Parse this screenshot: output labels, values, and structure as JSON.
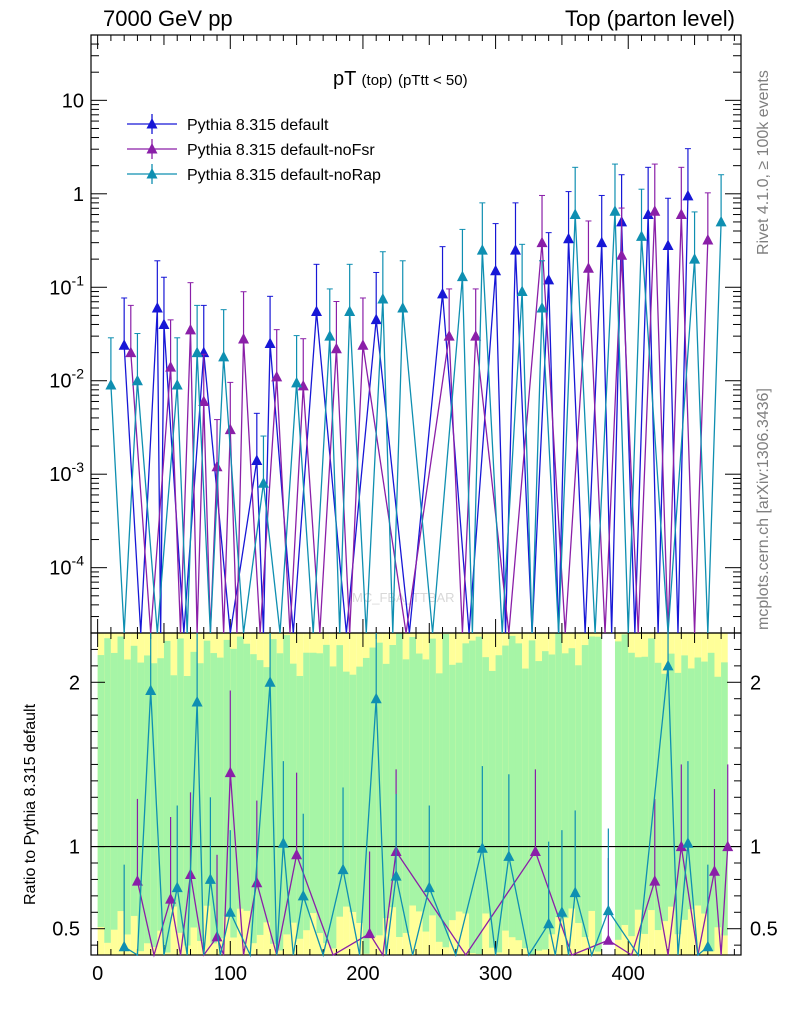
{
  "header": {
    "left": "7000 GeV pp",
    "right": "Top (parton level)"
  },
  "side_labels": {
    "rivet": "Rivet 4.1.0, ≥ 100k events",
    "mcplots": "mcplots.cern.ch [arXiv:1306.3436]"
  },
  "watermark": "MC_FBA_TTBAR",
  "chart_data": {
    "type": "line",
    "title": {
      "main": "pT",
      "sub1": "(top)",
      "sub2": "(pTtt < 50)"
    },
    "xlabel": "",
    "ylabel": "",
    "xlim": [
      -5,
      485
    ],
    "ylim": [
      2e-05,
      50
    ],
    "yscale": "log",
    "x_ticks": [
      "0",
      "100",
      "200",
      "300",
      "400"
    ],
    "y_tick_labels": [
      "10",
      "1",
      "10^-1",
      "10^-2",
      "10^-3",
      "10^-4"
    ],
    "legend_position": "top-left",
    "series": [
      {
        "name": "Pythia 8.315 default",
        "color": "#1717d6",
        "points": [
          [
            20,
            0.024
          ],
          [
            45,
            0.06
          ],
          [
            50,
            0.04
          ],
          [
            80,
            0.02
          ],
          [
            120,
            0.0014
          ],
          [
            130,
            0.025
          ],
          [
            165,
            0.055
          ],
          [
            210,
            0.045
          ],
          [
            260,
            0.085
          ],
          [
            300,
            0.15
          ],
          [
            315,
            0.25
          ],
          [
            340,
            0.12
          ],
          [
            355,
            0.33
          ],
          [
            380,
            0.3
          ],
          [
            395,
            0.5
          ],
          [
            415,
            0.6
          ],
          [
            430,
            0.28
          ],
          [
            445,
            0.95
          ]
        ]
      },
      {
        "name": "Pythia 8.315 default-noFsr",
        "color": "#8a1fa8",
        "points": [
          [
            25,
            0.02
          ],
          [
            55,
            0.014
          ],
          [
            70,
            0.035
          ],
          [
            80,
            0.006
          ],
          [
            90,
            0.0012
          ],
          [
            100,
            0.003
          ],
          [
            110,
            0.028
          ],
          [
            135,
            0.011
          ],
          [
            155,
            0.0088
          ],
          [
            180,
            0.022
          ],
          [
            200,
            0.024
          ],
          [
            265,
            0.03
          ],
          [
            285,
            0.03
          ],
          [
            335,
            0.3
          ],
          [
            370,
            0.16
          ],
          [
            395,
            0.22
          ],
          [
            420,
            0.65
          ],
          [
            440,
            0.6
          ],
          [
            460,
            0.32
          ]
        ]
      },
      {
        "name": "Pythia 8.315 default-noRap",
        "color": "#0f8fb1",
        "points": [
          [
            10,
            0.009
          ],
          [
            30,
            0.01
          ],
          [
            60,
            0.009
          ],
          [
            75,
            0.02
          ],
          [
            95,
            0.018
          ],
          [
            125,
            0.0008
          ],
          [
            150,
            0.0095
          ],
          [
            175,
            0.03
          ],
          [
            190,
            0.055
          ],
          [
            215,
            0.075
          ],
          [
            230,
            0.06
          ],
          [
            275,
            0.13
          ],
          [
            290,
            0.25
          ],
          [
            320,
            0.09
          ],
          [
            335,
            0.06
          ],
          [
            360,
            0.6
          ],
          [
            390,
            0.65
          ],
          [
            410,
            0.35
          ],
          [
            450,
            0.2
          ],
          [
            470,
            0.5
          ]
        ]
      }
    ],
    "ratio": {
      "ylabel": "Ratio to Pythia 8.315 default",
      "ylim": [
        0.34,
        2.3
      ],
      "y_ticks": [
        "0.5",
        "1",
        "2"
      ],
      "series": [
        {
          "name": "Pythia 8.315 default-noFsr",
          "color": "#8a1fa8",
          "points": [
            [
              30,
              0.79
            ],
            [
              55,
              0.68
            ],
            [
              70,
              0.83
            ],
            [
              90,
              0.45
            ],
            [
              100,
              1.45
            ],
            [
              120,
              0.78
            ],
            [
              150,
              0.95
            ],
            [
              205,
              0.47
            ],
            [
              225,
              0.97
            ],
            [
              330,
              0.97
            ],
            [
              385,
              0.43
            ],
            [
              420,
              0.79
            ],
            [
              440,
              1.0
            ],
            [
              465,
              0.85
            ],
            [
              475,
              1.0
            ]
          ]
        },
        {
          "name": "Pythia 8.315 default-noRap",
          "color": "#0f8fb1",
          "points": [
            [
              20,
              0.39
            ],
            [
              40,
              1.95
            ],
            [
              60,
              0.75
            ],
            [
              75,
              1.88
            ],
            [
              85,
              0.8
            ],
            [
              100,
              0.6
            ],
            [
              130,
              2.0
            ],
            [
              140,
              1.02
            ],
            [
              155,
              0.7
            ],
            [
              185,
              0.86
            ],
            [
              210,
              1.9
            ],
            [
              225,
              0.82
            ],
            [
              250,
              0.75
            ],
            [
              290,
              0.99
            ],
            [
              310,
              0.94
            ],
            [
              340,
              0.53
            ],
            [
              350,
              0.6
            ],
            [
              360,
              0.72
            ],
            [
              385,
              0.61
            ],
            [
              430,
              2.1
            ],
            [
              445,
              1.02
            ],
            [
              460,
              0.39
            ]
          ]
        }
      ]
    }
  }
}
